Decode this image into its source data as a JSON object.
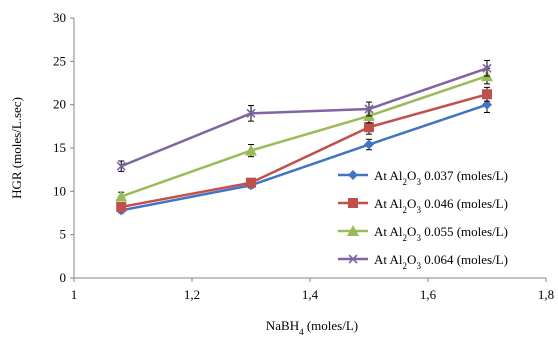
{
  "chart_data": {
    "type": "line",
    "x": [
      1.08,
      1.3,
      1.5,
      1.7
    ],
    "xlim": [
      1,
      1.8
    ],
    "ylim": [
      0,
      30
    ],
    "x_ticks": [
      1,
      1.2,
      1.4,
      1.6,
      1.8
    ],
    "x_tick_labels": [
      "1",
      "1,2",
      "1,4",
      "1,6",
      "1,8"
    ],
    "y_ticks": [
      0,
      5,
      10,
      15,
      20,
      25,
      30
    ],
    "y_tick_labels": [
      "0",
      "5",
      "10",
      "15",
      "20",
      "25",
      "30"
    ],
    "xlabel": {
      "main": "NaBH",
      "sub": "4",
      "tail": " (moles/L)"
    },
    "ylabel": "HGR (moles/L.sec)",
    "grid": false,
    "legend_position": "right",
    "series": [
      {
        "name": "At Al2O3 0.037 (moles/L)",
        "label": {
          "pre": "At Al",
          "s1": "2",
          "mid": "O",
          "s2": "3",
          "post": " 0.037 (moles/L)"
        },
        "color": "#4472C4",
        "marker": "diamond",
        "values": [
          7.8,
          10.7,
          15.4,
          20.0
        ],
        "errors": [
          0.3,
          0.3,
          0.6,
          0.9
        ]
      },
      {
        "name": "At Al2O3  0.046 (moles/L)",
        "label": {
          "pre": "At Al",
          "s1": "2",
          "mid": "O",
          "s2": "3",
          "post": "  0.046 (moles/L)"
        },
        "color": "#C0504D",
        "marker": "square",
        "values": [
          8.2,
          11.0,
          17.4,
          21.2
        ],
        "errors": [
          0.3,
          0.3,
          0.8,
          0.8
        ]
      },
      {
        "name": "At Al2O3 0.055 (moles/L)",
        "label": {
          "pre": "At Al",
          "s1": "2",
          "mid": "O",
          "s2": "3",
          "post": " 0.055 (moles/L)"
        },
        "color": "#9BBB59",
        "marker": "triangle",
        "values": [
          9.4,
          14.7,
          18.7,
          23.3
        ],
        "errors": [
          0.5,
          0.7,
          0.8,
          0.9
        ]
      },
      {
        "name": "At Al2O3 0.064 (moles/L)",
        "label": {
          "pre": "At Al",
          "s1": "2",
          "mid": "O",
          "s2": "3",
          "post": " 0.064 (moles/L)"
        },
        "color": "#8064A2",
        "marker": "x",
        "values": [
          12.9,
          19.0,
          19.5,
          24.2
        ],
        "errors": [
          0.6,
          0.9,
          0.8,
          0.9
        ]
      }
    ]
  }
}
